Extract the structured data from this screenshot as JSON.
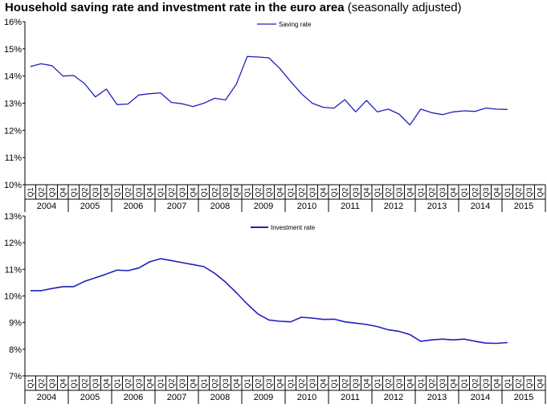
{
  "title": "Household saving rate and investment rate in the euro area",
  "subtitle": "(seasonally adjusted)",
  "chart_data": [
    {
      "type": "line",
      "title": "",
      "quarters": [
        "Q1",
        "Q2",
        "Q3",
        "Q4"
      ],
      "years": [
        "2004",
        "2005",
        "2006",
        "2007",
        "2008",
        "2009",
        "2010",
        "2011",
        "2012",
        "2013",
        "2014",
        "2015"
      ],
      "yticks": [
        "16%",
        "15%",
        "14%",
        "13%",
        "12%",
        "11%",
        "10%"
      ],
      "ylim": [
        10,
        16
      ],
      "grid": false,
      "legend": "top-center",
      "series": [
        {
          "name": "Saving rate",
          "color": "#1f1fbf",
          "values": [
            14.35,
            14.45,
            14.38,
            14.0,
            14.02,
            13.72,
            13.23,
            13.52,
            12.95,
            12.97,
            13.3,
            13.35,
            13.38,
            13.03,
            12.98,
            12.88,
            13.0,
            13.18,
            13.12,
            13.7,
            14.72,
            14.7,
            14.67,
            14.28,
            13.8,
            13.35,
            13.0,
            12.85,
            12.82,
            13.13,
            12.68,
            13.1,
            12.68,
            12.78,
            12.6,
            12.2,
            12.78,
            12.65,
            12.58,
            12.68,
            12.72,
            12.7,
            12.82,
            12.78,
            12.77
          ]
        }
      ]
    },
    {
      "type": "line",
      "title": "",
      "quarters": [
        "Q1",
        "Q2",
        "Q3",
        "Q4"
      ],
      "years": [
        "2004",
        "2005",
        "2006",
        "2007",
        "2008",
        "2009",
        "2010",
        "2011",
        "2012",
        "2013",
        "2014",
        "2015"
      ],
      "yticks": [
        "13%",
        "12%",
        "11%",
        "10%",
        "9%",
        "8%",
        "7%"
      ],
      "ylim": [
        7,
        13
      ],
      "grid": false,
      "legend": "top-center",
      "series": [
        {
          "name": "Investment rate",
          "color": "#1f1fbf",
          "values": [
            10.2,
            10.2,
            10.28,
            10.35,
            10.35,
            10.55,
            10.68,
            10.82,
            10.97,
            10.95,
            11.05,
            11.28,
            11.4,
            11.33,
            11.25,
            11.18,
            11.1,
            10.85,
            10.52,
            10.12,
            9.7,
            9.32,
            9.1,
            9.05,
            9.03,
            9.2,
            9.17,
            9.12,
            9.13,
            9.03,
            8.98,
            8.93,
            8.85,
            8.73,
            8.67,
            8.55,
            8.3,
            8.35,
            8.38,
            8.35,
            8.38,
            8.3,
            8.23,
            8.22,
            8.25
          ]
        }
      ]
    }
  ]
}
